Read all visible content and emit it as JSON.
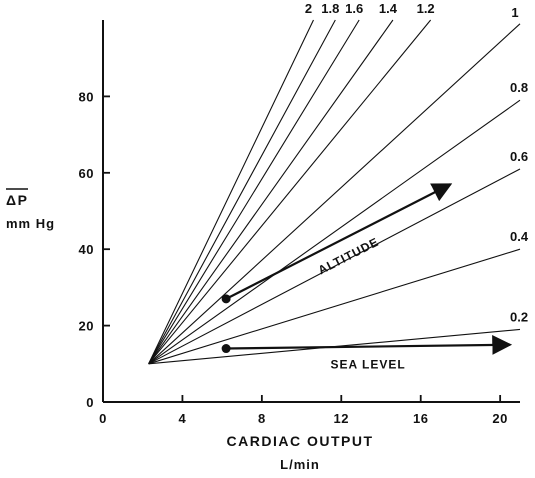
{
  "chart_data": {
    "type": "line",
    "xlabel": "CARDIAC OUTPUT",
    "xunit": "L/min",
    "ylabel": "ΔP",
    "yunit": "mm Hg",
    "xlim": [
      0,
      21
    ],
    "ylim": [
      0,
      100
    ],
    "x_ticks": [
      0,
      4,
      8,
      12,
      16,
      20
    ],
    "y_ticks": [
      0,
      20,
      40,
      60,
      80
    ],
    "origin_point": {
      "x": 2.3,
      "y": 10
    },
    "isopleths": [
      {
        "label": "2",
        "end": {
          "x": 10.6,
          "y": 100
        }
      },
      {
        "label": "1.8",
        "end": {
          "x": 11.7,
          "y": 100
        }
      },
      {
        "label": "1.6",
        "end": {
          "x": 12.9,
          "y": 100
        }
      },
      {
        "label": "1.4",
        "end": {
          "x": 14.6,
          "y": 100
        }
      },
      {
        "label": "1.2",
        "end": {
          "x": 16.5,
          "y": 100
        }
      },
      {
        "label": "1",
        "end": {
          "x": 21.0,
          "y": 99
        }
      },
      {
        "label": "0.8",
        "end": {
          "x": 21.0,
          "y": 79
        }
      },
      {
        "label": "0.6",
        "end": {
          "x": 21.0,
          "y": 61
        }
      },
      {
        "label": "0.4",
        "end": {
          "x": 21.0,
          "y": 40
        }
      },
      {
        "label": "0.2",
        "end": {
          "x": 21.0,
          "y": 19
        }
      }
    ],
    "annotations": [
      {
        "label": "ALTITUDE",
        "from": {
          "x": 6.2,
          "y": 27
        },
        "to": {
          "x": 17.5,
          "y": 57
        }
      },
      {
        "label": "SEA LEVEL",
        "from": {
          "x": 6.2,
          "y": 14
        },
        "to": {
          "x": 20.5,
          "y": 15
        }
      }
    ]
  }
}
